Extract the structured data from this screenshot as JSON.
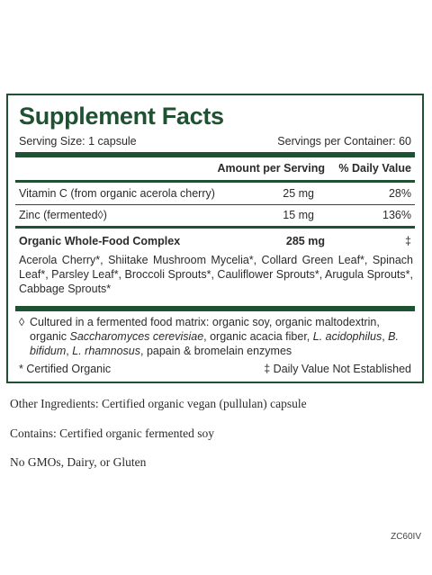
{
  "panel": {
    "title": "Supplement Facts",
    "serving_size": "Serving Size: 1 capsule",
    "servings_per_container": "Servings per Container: 60",
    "headers": {
      "amount": "Amount per Serving",
      "dv": "% Daily Value"
    },
    "rows": [
      {
        "name": "Vitamin C (from organic acerola cherry)",
        "amount": "25 mg",
        "dv": "28%"
      },
      {
        "name": "Zinc (fermented◊)",
        "amount": "15 mg",
        "dv": "136%"
      }
    ],
    "complex": {
      "name": "Organic Whole-Food Complex",
      "amount": "285 mg",
      "dv": "‡"
    },
    "complex_ingredients": "Acerola Cherry*, Shiitake Mushroom Mycelia*, Collard Green Leaf*, Spinach Leaf*, Parsley Leaf*, Broccoli Sprouts*, Cauliflower Sprouts*, Arugula Sprouts*, Cabbage Sprouts*",
    "footnote": {
      "mark": "◊",
      "text_1": "Cultured in a fermented food matrix: organic soy, organic maltodextrin, organic",
      "italic_1": "Saccharomyces cerevisiae",
      "text_2": ", organic acacia fiber, ",
      "italic_2": "L. acidophilus",
      "text_3": ", ",
      "italic_3": "B. bifidum",
      "text_4": ",",
      "italic_4": "L. rhamnosus",
      "text_5": ", papain & bromelain enzymes"
    },
    "certified": "* Certified Organic",
    "dv_note": "‡ Daily Value Not Established"
  },
  "below": {
    "other_ingredients": "Other Ingredients: Certified organic vegan (pullulan) capsule",
    "contains": "Contains: Certified organic fermented soy",
    "free_of": "No GMOs, Dairy, or Gluten"
  },
  "code": "ZC60IV",
  "colors": {
    "panel_green": "#1f5132",
    "text": "#2b2b2b"
  }
}
